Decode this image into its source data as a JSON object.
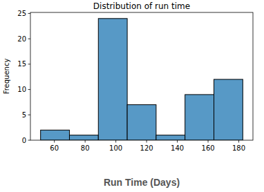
{
  "chart_data": {
    "type": "histogram",
    "title": "Distribution of run time",
    "x_label": "Run Time (Days)",
    "y_label": "Frequency",
    "bins": [
      51,
      69.8,
      88.6,
      107.4,
      126.2,
      145.0,
      163.8,
      182.6
    ],
    "values": [
      2,
      1,
      24,
      7,
      1,
      9,
      12
    ],
    "color": "#5799c6",
    "xlim": [
      44.4,
      189.2
    ],
    "xticks": [
      60,
      80,
      100,
      120,
      140,
      160,
      180
    ],
    "ylim": [
      0,
      25.2
    ],
    "yticks": [
      0,
      5,
      10,
      15,
      20,
      25
    ],
    "grid": false
  }
}
